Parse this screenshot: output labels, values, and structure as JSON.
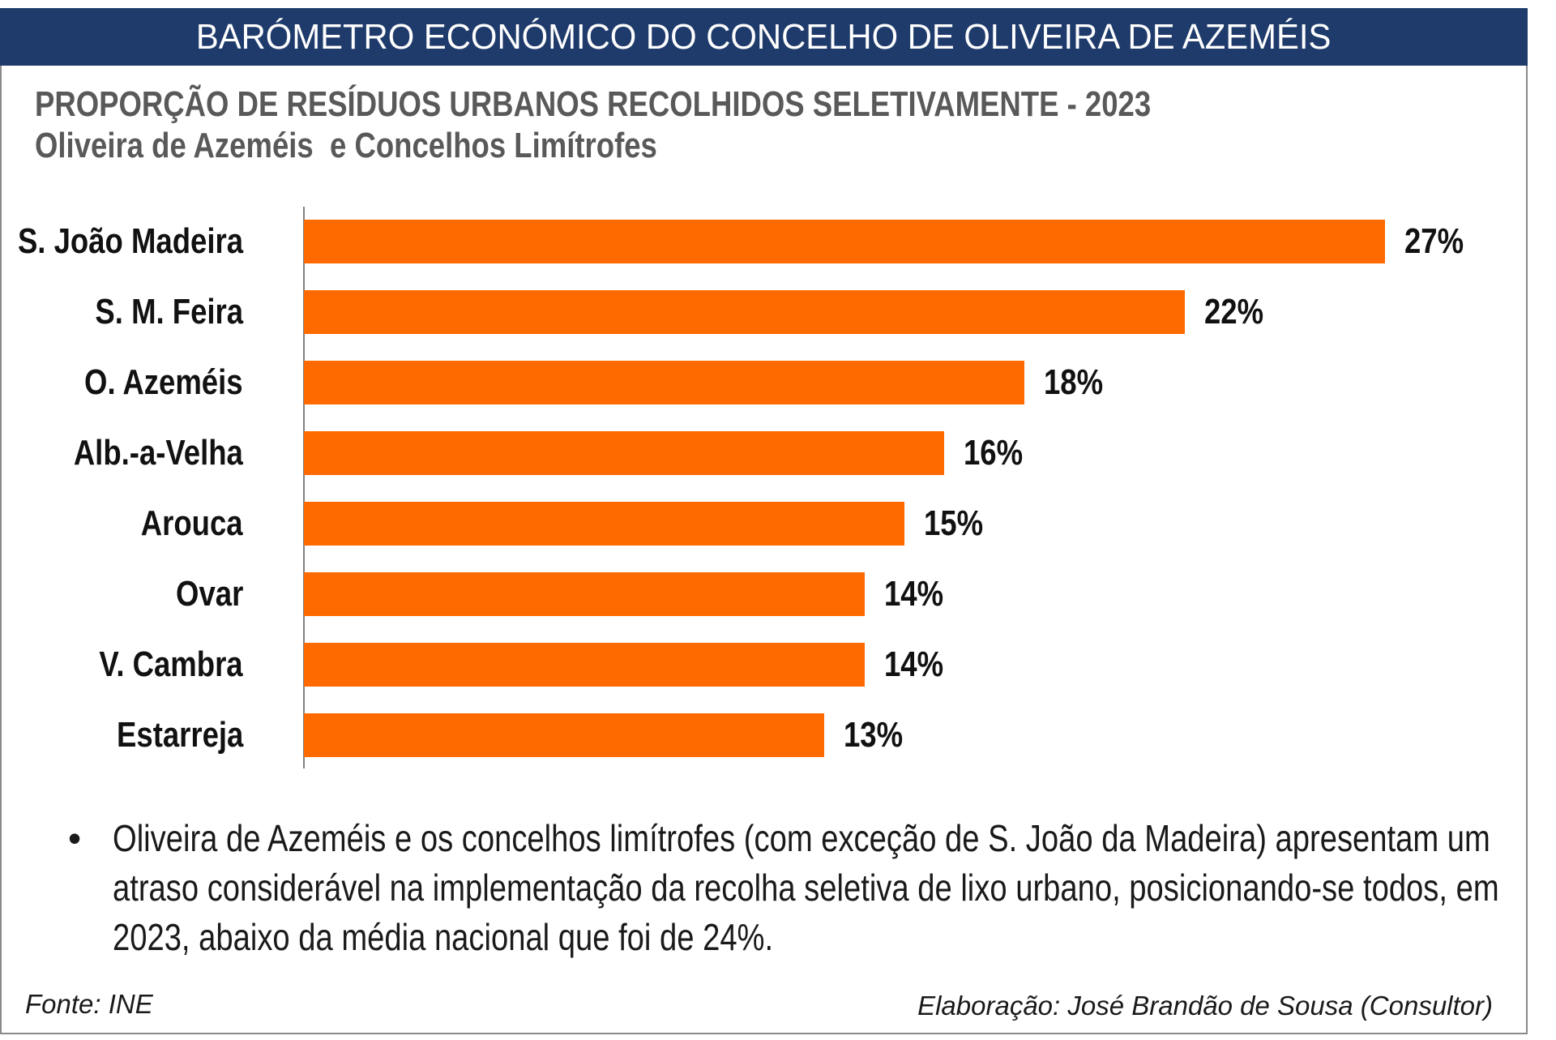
{
  "header": {
    "title": "BARÓMETRO ECONÓMICO DO CONCELHO DE OLIVEIRA DE AZEMÉIS"
  },
  "colors": {
    "header_bg": "#1f3b6b",
    "bar": "#ff6a00",
    "title": "#595959",
    "text": "#111111"
  },
  "chart_data": {
    "type": "bar",
    "orientation": "horizontal",
    "title": "PROPORÇÃO DE RESÍDUOS URBANOS RECOLHIDOS SELETIVAMENTE - 2023",
    "subtitle": "Oliveira de Azeméis  e Concelhos Limítrofes",
    "categories": [
      "S. João Madeira",
      "S. M. Feira",
      "O. Azeméis",
      "Alb.-a-Velha",
      "Arouca",
      "Ovar",
      "V. Cambra",
      "Estarreja"
    ],
    "values": [
      27,
      22,
      18,
      16,
      15,
      14,
      14,
      13
    ],
    "data_labels": [
      "27%",
      "22%",
      "18%",
      "16%",
      "15%",
      "14%",
      "14%",
      "13%"
    ],
    "xlim": [
      0,
      30
    ],
    "grid": false
  },
  "note": {
    "bullet": "•",
    "text": "Oliveira de Azeméis e os concelhos limítrofes (com exceção de S. João da Madeira) apresentam um atraso considerável na implementação da recolha seletiva de lixo urbano, posicionando-se todos, em 2023, abaixo da média nacional que foi de 24%."
  },
  "footer": {
    "source": "Fonte: INE",
    "credit": "Elaboração: José Brandão de Sousa (Consultor)"
  }
}
